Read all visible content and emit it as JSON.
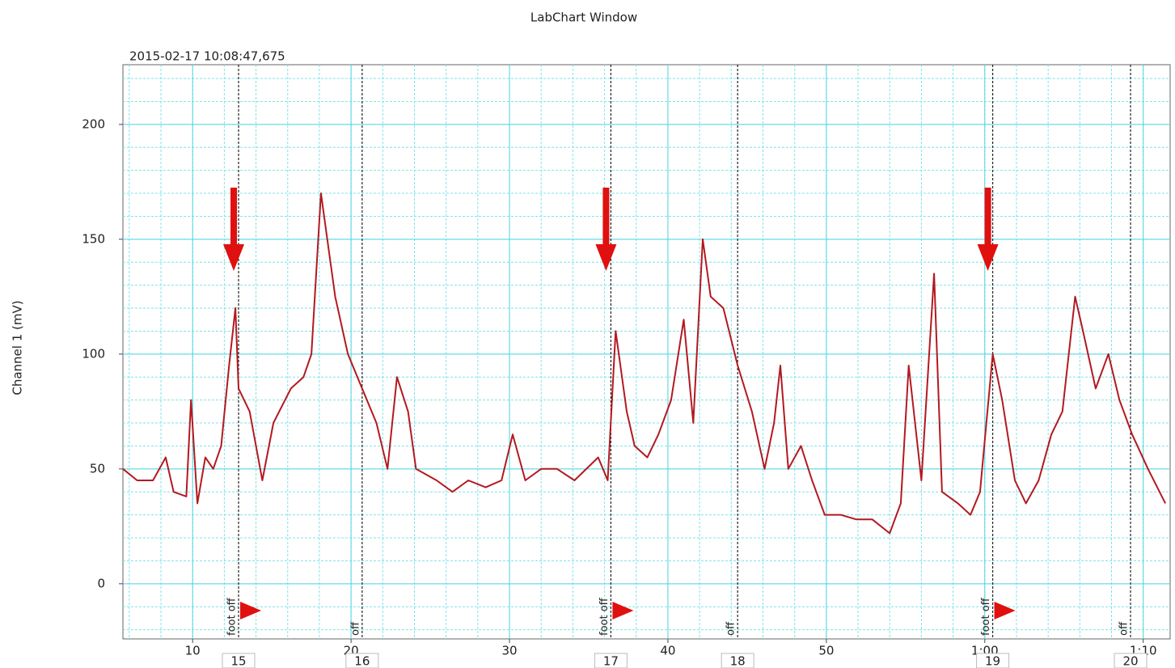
{
  "chart_data": {
    "type": "line",
    "title": "LabChart Window",
    "timestamp": "2015-02-17 10:08:47,675",
    "y_label": "Channel 1 (mV)",
    "xlim": [
      5.6,
      71.7
    ],
    "ylim": [
      -24,
      226
    ],
    "xticks": [
      10,
      20,
      30,
      40,
      50,
      {
        "value": 60,
        "label": "1:00"
      },
      {
        "value": 70,
        "label": "1:10"
      }
    ],
    "yticks": [
      0,
      50,
      100,
      150,
      200
    ],
    "grid": true,
    "series": [
      {
        "color": "#b3191f",
        "x": [
          5.6,
          6.5,
          7.5,
          8.3,
          8.8,
          9.6,
          9.9,
          10.3,
          10.8,
          11.3,
          11.8,
          12.3,
          12.7,
          12.9,
          13.6,
          14.4,
          15.1,
          16.2,
          17.0,
          17.5,
          18.1,
          18.5,
          19.0,
          19.8,
          20.7,
          21.6,
          22.3,
          22.9,
          23.6,
          24.1,
          25.4,
          26.4,
          27.4,
          28.5,
          29.5,
          30.2,
          31.0,
          32.0,
          33.0,
          34.1,
          35.6,
          36.2,
          36.7,
          37.4,
          37.9,
          38.7,
          39.4,
          40.2,
          41.0,
          41.6,
          42.2,
          42.7,
          43.5,
          44.4,
          45.3,
          46.1,
          46.7,
          47.1,
          47.6,
          48.4,
          49.1,
          49.9,
          50.9,
          51.9,
          52.9,
          54.0,
          54.7,
          55.2,
          56.0,
          56.8,
          57.3,
          58.3,
          59.1,
          59.7,
          60.5,
          61.1,
          61.9,
          62.6,
          63.4,
          64.2,
          64.9,
          65.7,
          66.2,
          67.0,
          67.8,
          68.5,
          69.3,
          70.3,
          71.4
        ],
        "values": [
          50,
          45,
          45,
          55,
          40,
          38,
          80,
          35,
          55,
          50,
          60,
          95,
          120,
          85,
          75,
          45,
          70,
          85,
          90,
          100,
          170,
          150,
          125,
          100,
          85,
          70,
          50,
          90,
          75,
          50,
          45,
          40,
          45,
          42,
          45,
          65,
          45,
          50,
          50,
          45,
          55,
          45,
          110,
          75,
          60,
          55,
          65,
          80,
          115,
          70,
          150,
          125,
          120,
          95,
          75,
          50,
          70,
          95,
          50,
          60,
          45,
          30,
          30,
          28,
          28,
          22,
          35,
          95,
          45,
          135,
          40,
          35,
          30,
          40,
          100,
          80,
          45,
          35,
          45,
          65,
          75,
          125,
          110,
          85,
          100,
          80,
          65,
          50,
          35
        ]
      }
    ],
    "events": [
      {
        "x": 12.9,
        "number": 15,
        "label": "foot off"
      },
      {
        "x": 20.7,
        "number": 16,
        "label": "off"
      },
      {
        "x": 36.4,
        "number": 17,
        "label": "foot off"
      },
      {
        "x": 44.4,
        "number": 18,
        "label": "off"
      },
      {
        "x": 60.5,
        "number": 19,
        "label": "foot off"
      },
      {
        "x": 69.2,
        "number": 20,
        "label": "off"
      }
    ]
  }
}
